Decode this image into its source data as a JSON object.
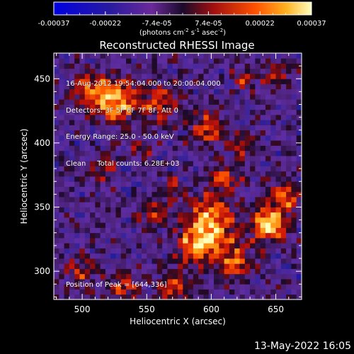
{
  "chart_data": {
    "type": "heatmap",
    "title": "Reconstructed RHESSI Image",
    "xlabel": "Heliocentric X (arcsec)",
    "ylabel": "Heliocentric Y (arcsec)",
    "xlim": [
      478,
      670
    ],
    "ylim": [
      278,
      470
    ],
    "xticks": [
      500,
      550,
      600,
      650
    ],
    "yticks": [
      300,
      350,
      400,
      450
    ],
    "colorbar": {
      "min": -0.00037,
      "max": 0.00037,
      "tick_labels": [
        "-0.00037",
        "-0.00022",
        "-7.4e-05",
        "7.4e-05",
        "0.00022",
        "0.00037"
      ],
      "unit_label": "(photons cm",
      "unit_sup1": "-2",
      "unit_mid": " s",
      "unit_sup2": "-1",
      "unit_tail": " asec",
      "unit_sup3": "-2",
      "unit_close": ")"
    },
    "info_lines": [
      "16-Aug-2012 19:54:04.000 to 20:00:04.000",
      "Detectors: 3F 5F 6F 7F 8F, Att 0",
      "Energy Range: 25.0 - 50.0 keV",
      "Clean     Total counts: 6.28E+03"
    ],
    "peak_label": "Position of Peak = [644,336]",
    "peak_position": [
      644,
      336
    ],
    "sources": [
      {
        "x": 646,
        "y": 338,
        "r": 9,
        "amp": 1.0
      },
      {
        "x": 600,
        "y": 338,
        "r": 14,
        "amp": 0.75
      },
      {
        "x": 587,
        "y": 318,
        "r": 10,
        "amp": 0.6
      },
      {
        "x": 618,
        "y": 308,
        "r": 10,
        "amp": 0.55
      },
      {
        "x": 528,
        "y": 432,
        "r": 11,
        "amp": 0.7
      },
      {
        "x": 508,
        "y": 440,
        "r": 10,
        "amp": 0.6
      },
      {
        "x": 560,
        "y": 432,
        "r": 10,
        "amp": 0.5
      },
      {
        "x": 598,
        "y": 412,
        "r": 9,
        "amp": 0.55
      },
      {
        "x": 610,
        "y": 372,
        "r": 8,
        "amp": 0.45
      },
      {
        "x": 625,
        "y": 398,
        "r": 7,
        "amp": 0.4
      },
      {
        "x": 660,
        "y": 360,
        "r": 8,
        "amp": 0.55
      },
      {
        "x": 555,
        "y": 345,
        "r": 7,
        "amp": 0.45
      },
      {
        "x": 570,
        "y": 365,
        "r": 6,
        "amp": 0.35
      },
      {
        "x": 515,
        "y": 380,
        "r": 7,
        "amp": 0.35
      },
      {
        "x": 545,
        "y": 395,
        "r": 6,
        "amp": 0.3
      },
      {
        "x": 650,
        "y": 455,
        "r": 8,
        "amp": 0.35
      },
      {
        "x": 498,
        "y": 300,
        "r": 8,
        "amp": 0.4
      },
      {
        "x": 532,
        "y": 288,
        "r": 9,
        "amp": 0.45
      },
      {
        "x": 570,
        "y": 286,
        "r": 8,
        "amp": 0.5
      },
      {
        "x": 626,
        "y": 450,
        "r": 6,
        "amp": 0.35
      }
    ],
    "background": -0.25
  },
  "footer": {
    "timestamp": "13-May-2022 16:05"
  }
}
